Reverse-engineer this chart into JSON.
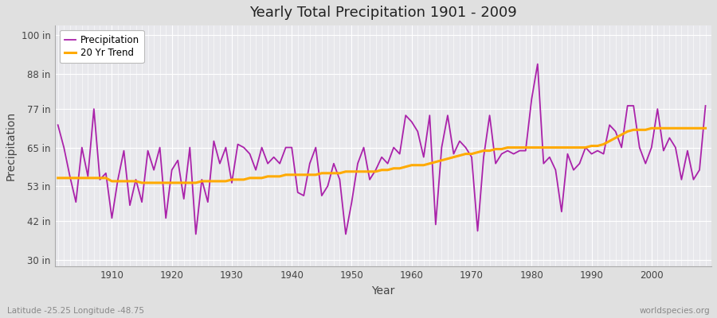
{
  "title": "Yearly Total Precipitation 1901 - 2009",
  "xlabel": "Year",
  "ylabel": "Precipitation",
  "lat_lon_label": "Latitude -25.25 Longitude -48.75",
  "source_label": "worldspecies.org",
  "years": [
    1901,
    1902,
    1903,
    1904,
    1905,
    1906,
    1907,
    1908,
    1909,
    1910,
    1911,
    1912,
    1913,
    1914,
    1915,
    1916,
    1917,
    1918,
    1919,
    1920,
    1921,
    1922,
    1923,
    1924,
    1925,
    1926,
    1927,
    1928,
    1929,
    1930,
    1931,
    1932,
    1933,
    1934,
    1935,
    1936,
    1937,
    1938,
    1939,
    1940,
    1941,
    1942,
    1943,
    1944,
    1945,
    1946,
    1947,
    1948,
    1949,
    1950,
    1951,
    1952,
    1953,
    1954,
    1955,
    1956,
    1957,
    1958,
    1959,
    1960,
    1961,
    1962,
    1963,
    1964,
    1965,
    1966,
    1967,
    1968,
    1969,
    1970,
    1971,
    1972,
    1973,
    1974,
    1975,
    1976,
    1977,
    1978,
    1979,
    1980,
    1981,
    1982,
    1983,
    1984,
    1985,
    1986,
    1987,
    1988,
    1989,
    1990,
    1991,
    1992,
    1993,
    1994,
    1995,
    1996,
    1997,
    1998,
    1999,
    2000,
    2001,
    2002,
    2003,
    2004,
    2005,
    2006,
    2007,
    2008,
    2009
  ],
  "precip": [
    72,
    65,
    56,
    48,
    65,
    56,
    77,
    55,
    57,
    43,
    55,
    64,
    47,
    55,
    48,
    64,
    58,
    65,
    43,
    58,
    61,
    49,
    65,
    38,
    55,
    48,
    67,
    60,
    65,
    54,
    66,
    65,
    63,
    58,
    65,
    60,
    62,
    60,
    65,
    65,
    51,
    50,
    60,
    65,
    50,
    53,
    60,
    55,
    38,
    48,
    60,
    65,
    55,
    58,
    62,
    60,
    65,
    63,
    75,
    73,
    70,
    62,
    75,
    41,
    65,
    75,
    63,
    67,
    65,
    62,
    39,
    62,
    75,
    60,
    63,
    64,
    63,
    64,
    64,
    80,
    91,
    60,
    62,
    58,
    45,
    63,
    58,
    60,
    65,
    63,
    64,
    63,
    72,
    70,
    65,
    78,
    78,
    65,
    60,
    65,
    77,
    64,
    68,
    65,
    55,
    64,
    55,
    58,
    78
  ],
  "trend": [
    55.5,
    55.5,
    55.5,
    55.5,
    55.5,
    55.5,
    55.5,
    55.5,
    55.5,
    54.5,
    54.5,
    54.5,
    54.5,
    54.5,
    54.0,
    54.0,
    54.0,
    54.0,
    54.0,
    54.0,
    54.0,
    54.0,
    54.0,
    54.0,
    54.5,
    54.5,
    54.5,
    54.5,
    54.5,
    55.0,
    55.0,
    55.0,
    55.5,
    55.5,
    55.5,
    56.0,
    56.0,
    56.0,
    56.5,
    56.5,
    56.5,
    56.5,
    56.5,
    56.5,
    57.0,
    57.0,
    57.0,
    57.0,
    57.5,
    57.5,
    57.5,
    57.5,
    57.5,
    57.5,
    58.0,
    58.0,
    58.5,
    58.5,
    59.0,
    59.5,
    59.5,
    59.5,
    60.0,
    60.5,
    61.0,
    61.5,
    62.0,
    62.5,
    63.0,
    63.0,
    63.5,
    64.0,
    64.0,
    64.5,
    64.5,
    65.0,
    65.0,
    65.0,
    65.0,
    65.0,
    65.0,
    65.0,
    65.0,
    65.0,
    65.0,
    65.0,
    65.0,
    65.0,
    65.0,
    65.5,
    65.5,
    66.0,
    67.0,
    68.0,
    69.0,
    70.0,
    70.5,
    70.5,
    70.5,
    71.0,
    71.0,
    71.0,
    71.0,
    71.0,
    71.0,
    71.0,
    71.0,
    71.0,
    71.0
  ],
  "precip_color": "#aa22aa",
  "trend_color": "#ffaa00",
  "fig_bg_color": "#e0e0e0",
  "plot_bg_color": "#e8e8ec",
  "grid_color": "#ffffff",
  "yticks": [
    30,
    42,
    53,
    65,
    77,
    88,
    100
  ],
  "ytick_labels": [
    "30 in",
    "42 in",
    "53 in",
    "65 in",
    "77 in",
    "88 in",
    "100 in"
  ],
  "ylim": [
    28,
    103
  ],
  "xlim": [
    1900.5,
    2010
  ]
}
